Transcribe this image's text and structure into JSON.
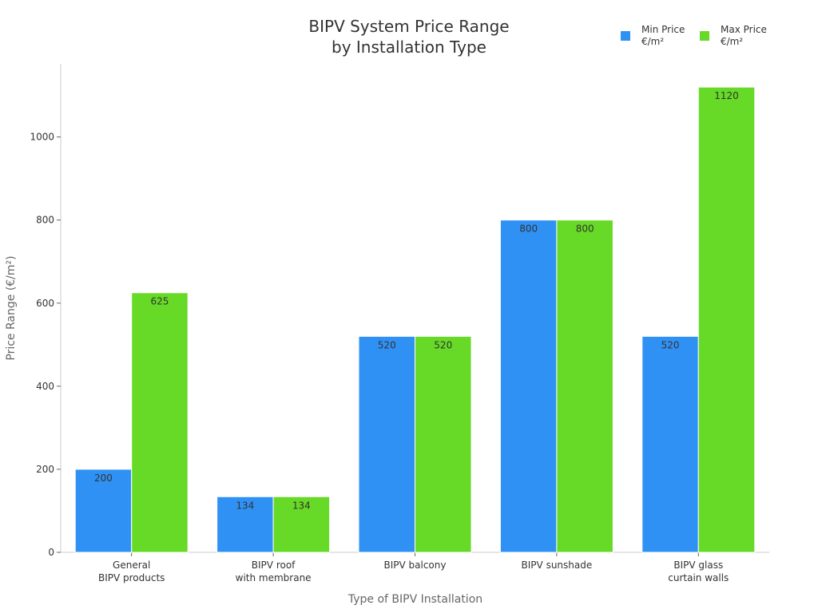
{
  "chart_data": {
    "type": "bar",
    "title": "BIPV System Price Range\nby Installation Type",
    "xlabel": "Type of BIPV Installation",
    "ylabel": "Price Range (€/m²)",
    "ylim": [
      0,
      1176
    ],
    "yticks": [
      0,
      200,
      400,
      600,
      800,
      1000
    ],
    "grid": false,
    "legend_position": "top-right",
    "categories": [
      "General\nBIPV products",
      "BIPV roof\nwith membrane",
      "BIPV balcony",
      "BIPV sunshade",
      "BIPV glass\ncurtain walls"
    ],
    "series": [
      {
        "name": "Min Price\n€/m²",
        "color": "#3091f5",
        "values": [
          200,
          134,
          520,
          800,
          520
        ]
      },
      {
        "name": "Max Price\n€/m²",
        "color": "#66da26",
        "values": [
          625,
          134,
          520,
          800,
          1120
        ]
      }
    ]
  }
}
